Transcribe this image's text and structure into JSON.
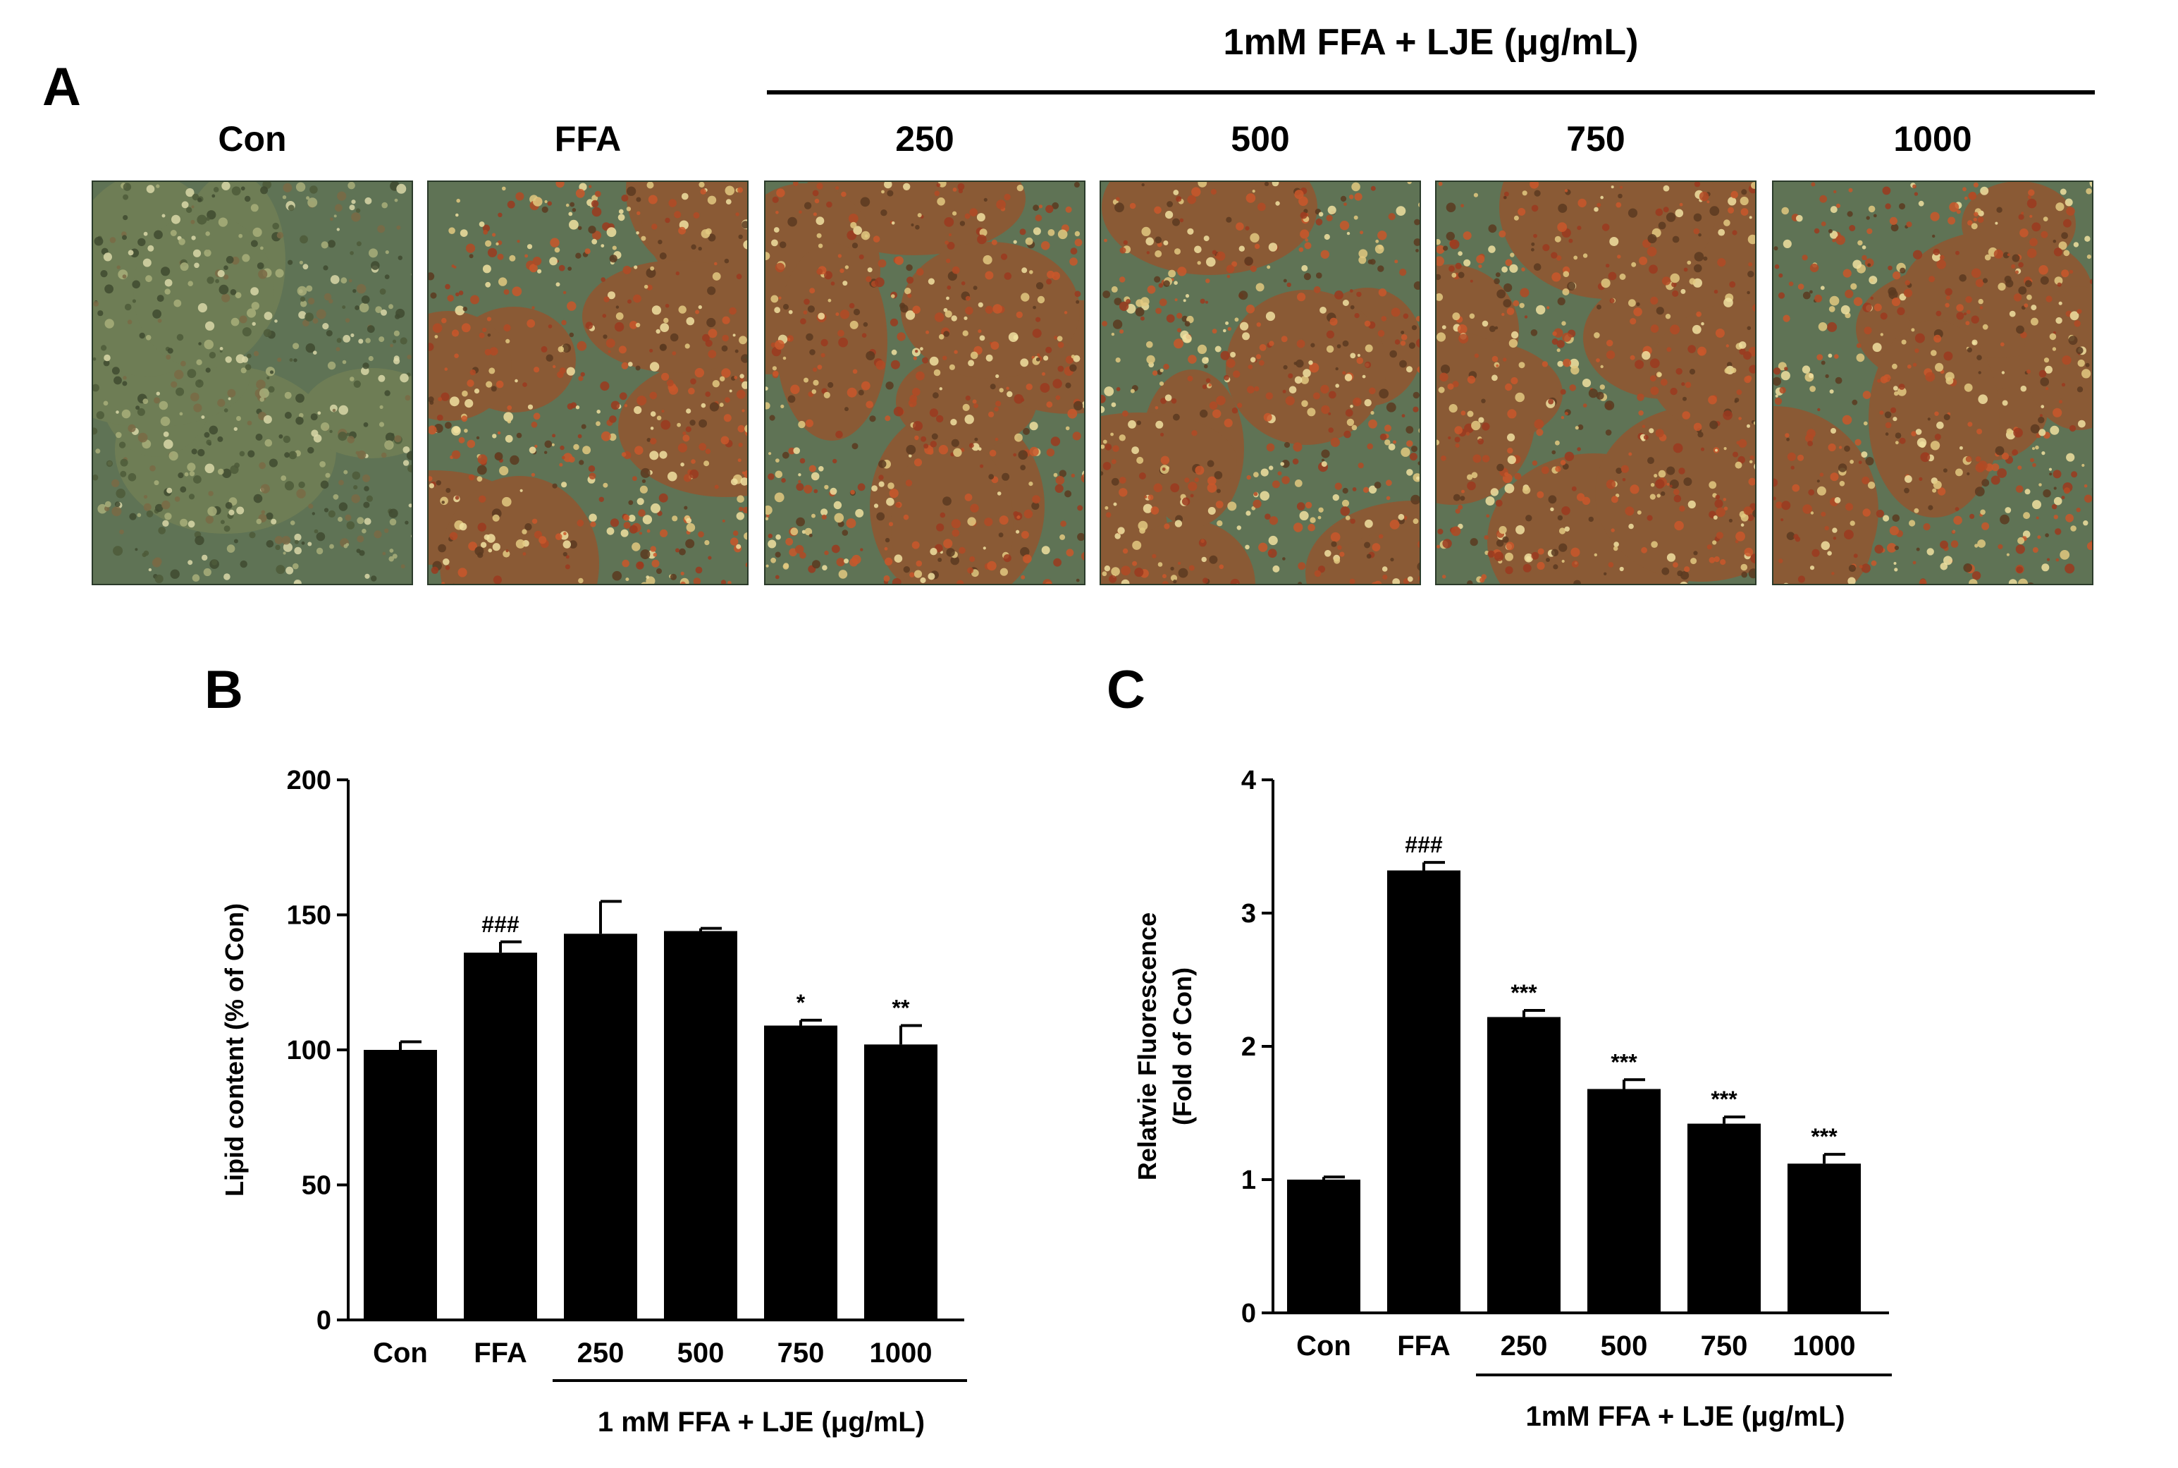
{
  "panel_a": {
    "letter": "A",
    "group_title": "1mM FFA + LJE (μg/mL)",
    "images": [
      {
        "label": "Con",
        "tone": "green"
      },
      {
        "label": "FFA",
        "tone": "red"
      },
      {
        "label": "250",
        "tone": "red"
      },
      {
        "label": "500",
        "tone": "red"
      },
      {
        "label": "750",
        "tone": "red"
      },
      {
        "label": "1000",
        "tone": "red"
      }
    ]
  },
  "chart_data": [
    {
      "panel": "B",
      "type": "bar",
      "categories": [
        "Con",
        "FFA",
        "250",
        "500",
        "750",
        "1000"
      ],
      "values": [
        100,
        136,
        143,
        144,
        109,
        102
      ],
      "errors": [
        3,
        4,
        12,
        1,
        2,
        7
      ],
      "annotations": [
        "",
        "###",
        "",
        "",
        "*",
        "**"
      ],
      "ylabel": "Lipid content (% of Con)",
      "ylim": [
        0,
        200
      ],
      "yticks": [
        0,
        50,
        100,
        150,
        200
      ],
      "group_label": "1 mM FFA + LJE  (μg/mL)",
      "group_start_index": 2,
      "bar_color": "#000000"
    },
    {
      "panel": "C",
      "type": "bar",
      "categories": [
        "Con",
        "FFA",
        "250",
        "500",
        "750",
        "1000"
      ],
      "values": [
        1.0,
        3.32,
        2.22,
        1.68,
        1.42,
        1.12
      ],
      "errors": [
        0.02,
        0.06,
        0.05,
        0.07,
        0.05,
        0.07
      ],
      "annotations": [
        "",
        "###",
        "***",
        "***",
        "***",
        "***"
      ],
      "ylabel": "Relatvie Fluorescence",
      "ylabel2": "(Fold of Con)",
      "ylim": [
        0,
        4
      ],
      "yticks": [
        0,
        1,
        2,
        3,
        4
      ],
      "group_label": "1mM FFA + LJE  (μg/mL)",
      "group_start_index": 2,
      "bar_color": "#000000"
    }
  ]
}
